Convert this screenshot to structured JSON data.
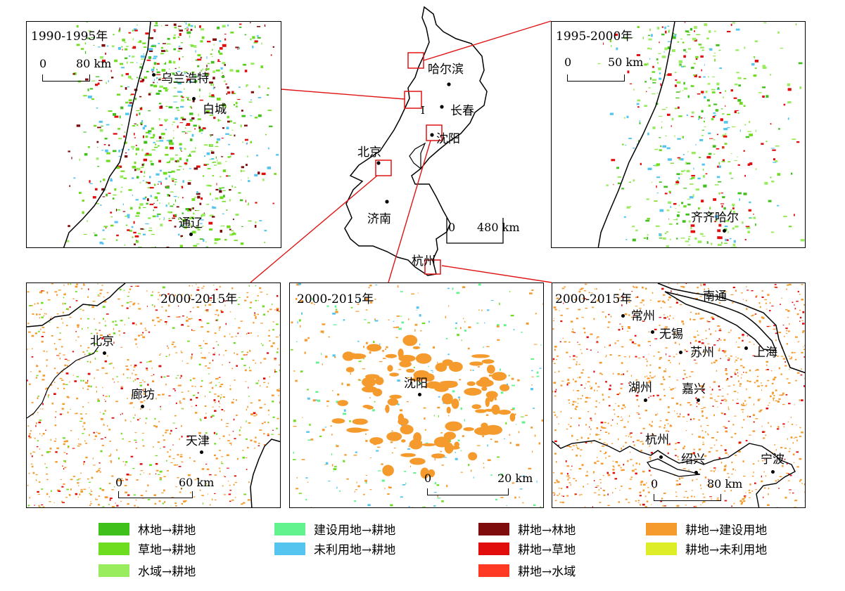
{
  "panels": {
    "p1": {
      "title": "1990-1995年",
      "scale": [
        "0",
        "80 km"
      ],
      "cities": [
        "乌兰浩特",
        "白城",
        "通辽"
      ]
    },
    "p2": {
      "title": "1995-2000年",
      "scale": [
        "0",
        "50 km"
      ],
      "cities": [
        "齐齐哈尔"
      ]
    },
    "p3": {
      "title": "2000-2015年",
      "scale": [
        "0",
        "60 km"
      ],
      "cities": [
        "北京",
        "廊坊",
        "天津"
      ]
    },
    "p4": {
      "title": "2000-2015年",
      "scale": [
        "0",
        "20 km"
      ],
      "cities": [
        "沈阳"
      ]
    },
    "p5": {
      "title": "2000-2015年",
      "scale": [
        "0",
        "80 km"
      ],
      "cities": [
        "南通",
        "常州",
        "无锡",
        "苏州",
        "上海",
        "湖州",
        "嘉兴",
        "杭州",
        "绍兴",
        "宁波"
      ]
    }
  },
  "overview": {
    "cities": [
      "哈尔滨",
      "长春",
      "沈阳",
      "北京",
      "济南",
      "杭州"
    ],
    "marker": "I",
    "scale": [
      "0",
      "480 km"
    ]
  },
  "legend": [
    {
      "label": "林地→耕地",
      "color": "#3fc01a"
    },
    {
      "label": "草地→耕地",
      "color": "#6edc1f"
    },
    {
      "label": "水域→耕地",
      "color": "#98ec5e"
    },
    {
      "label": "建设用地→耕地",
      "color": "#62f28e"
    },
    {
      "label": "未利用地→耕地",
      "color": "#55c4ee"
    },
    {
      "label": "耕地→林地",
      "color": "#7f0c0c"
    },
    {
      "label": "耕地→草地",
      "color": "#e10d0d"
    },
    {
      "label": "耕地→水域",
      "color": "#ff3a24"
    },
    {
      "label": "耕地→建设用地",
      "color": "#f59a2c"
    },
    {
      "label": "耕地→未利用地",
      "color": "#dded28"
    }
  ],
  "colors": {
    "inset_box": "#e01414",
    "boundary": "#000000"
  }
}
